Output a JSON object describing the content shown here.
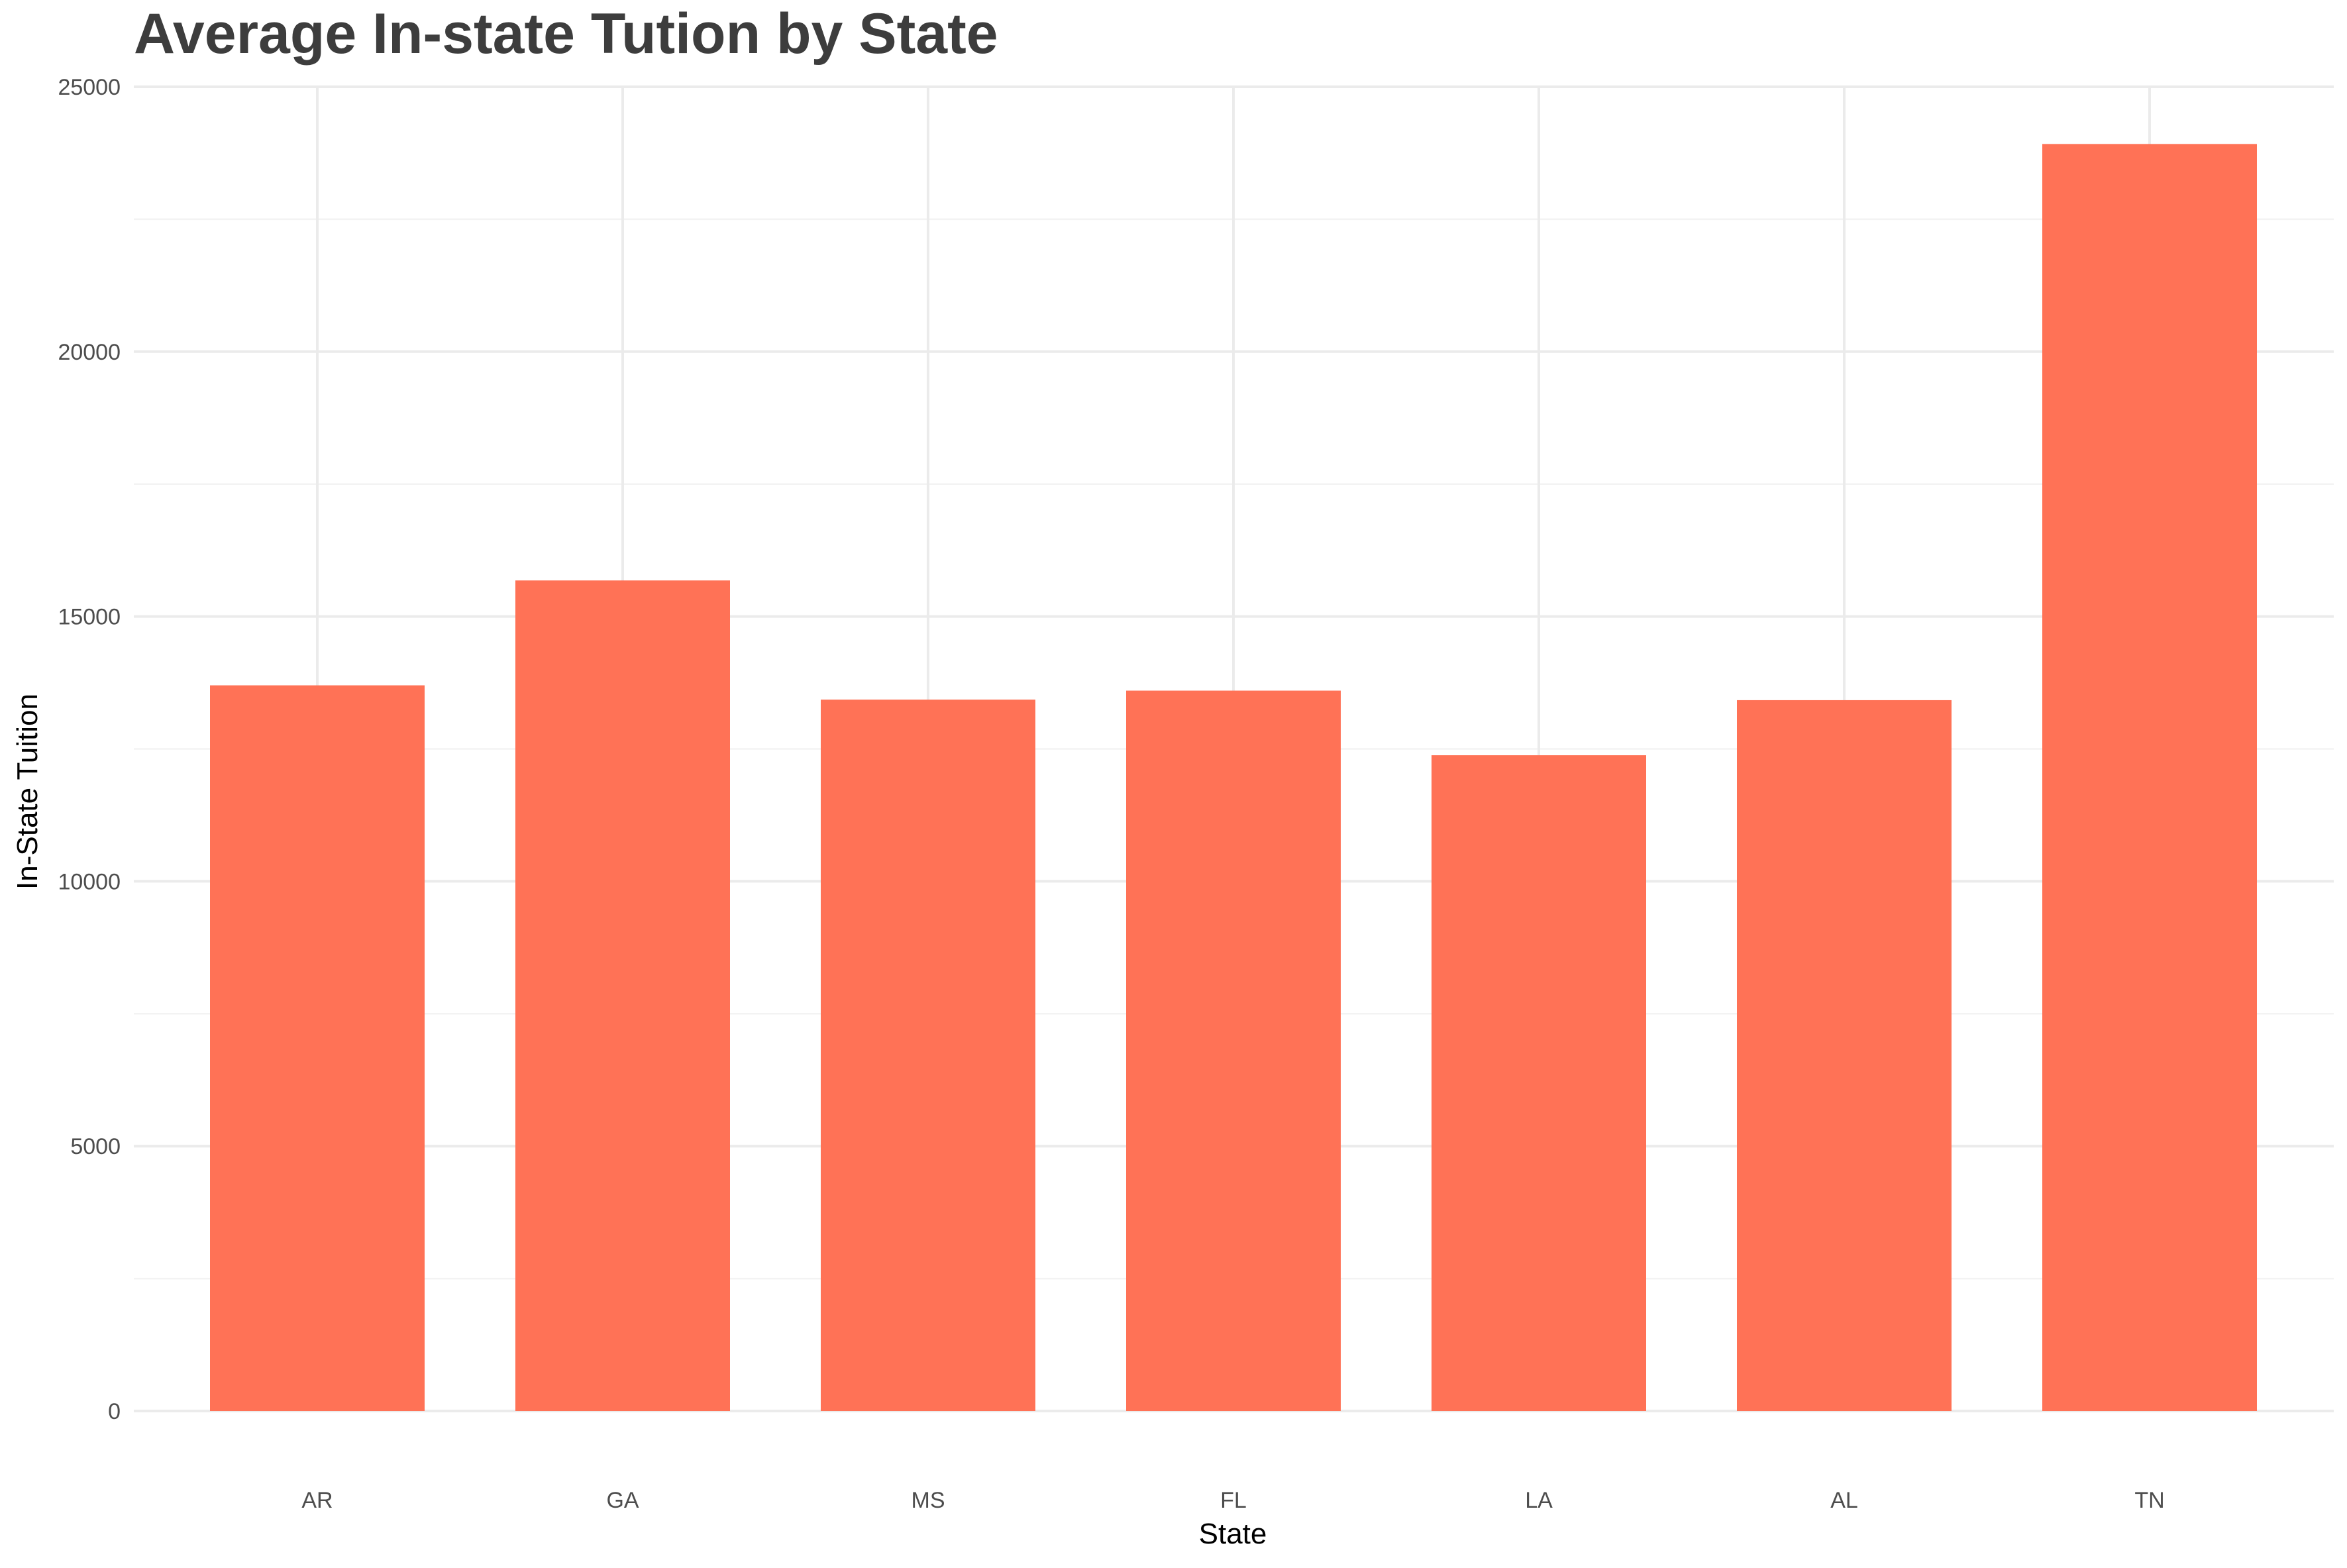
{
  "chart_data": {
    "type": "bar",
    "title": "Average In-state Tution by State",
    "xlabel": "State",
    "ylabel": "In-State Tuition",
    "categories": [
      "AR",
      "GA",
      "MS",
      "FL",
      "LA",
      "AL",
      "TN"
    ],
    "values": [
      13700,
      15680,
      13430,
      13600,
      12380,
      13420,
      23920
    ],
    "ylim": [
      0,
      25000
    ],
    "yticks": [
      0,
      5000,
      10000,
      15000,
      20000,
      25000
    ],
    "ytick_labels": [
      "0",
      "5000",
      "10000",
      "15000",
      "20000",
      "25000"
    ],
    "bar_color": "#FF7256",
    "grid": true,
    "legend": "none"
  }
}
